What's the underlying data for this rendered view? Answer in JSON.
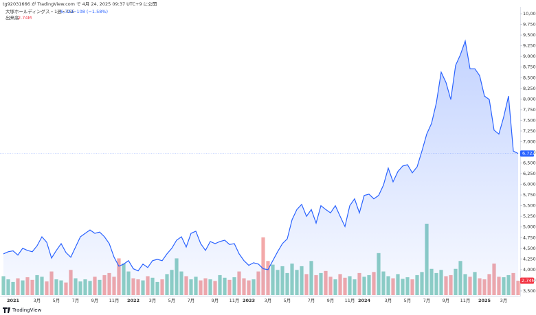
{
  "chart_data": {
    "type": "line",
    "header": "tg92031666 が TradingView.com で 4月 24, 2025 09:37 UTC+9 に公開",
    "title": "大塚ホールディングス・1週・TSE",
    "last": {
      "value": 6722,
      "label": "6,722"
    },
    "change": "−108 (−1.58%)",
    "footer": "TradingView",
    "categories": [
      null,
      null,
      "2021",
      null,
      null,
      null,
      null,
      "3月",
      null,
      null,
      null,
      "5月",
      null,
      null,
      null,
      "7月",
      null,
      null,
      null,
      "9月",
      null,
      null,
      null,
      "11月",
      null,
      null,
      null,
      "2022",
      null,
      null,
      null,
      "3月",
      null,
      null,
      null,
      "5月",
      null,
      null,
      null,
      "7月",
      null,
      null,
      null,
      null,
      "9月",
      null,
      null,
      null,
      "11月",
      null,
      null,
      "2023",
      null,
      null,
      null,
      "3月",
      null,
      null,
      null,
      "5月",
      null,
      null,
      null,
      null,
      "7月",
      null,
      null,
      null,
      "9月",
      null,
      null,
      null,
      "11月",
      null,
      null,
      "2024",
      null,
      null,
      null,
      null,
      "3月",
      null,
      null,
      null,
      "5月",
      null,
      null,
      null,
      "7月",
      null,
      null,
      null,
      "9月",
      null,
      null,
      null,
      "11月",
      null,
      null,
      null,
      "2025",
      null,
      null,
      null,
      "3月",
      null,
      null,
      null
    ],
    "price": {
      "color": "#2962ff",
      "values": [
        4370,
        4420,
        4440,
        4340,
        4500,
        4450,
        4420,
        4560,
        4770,
        4640,
        4270,
        4450,
        4610,
        4400,
        4290,
        4530,
        4770,
        4850,
        4930,
        4850,
        4880,
        4770,
        4610,
        4290,
        4080,
        4130,
        4210,
        4020,
        3970,
        4130,
        4050,
        4210,
        4240,
        4210,
        4370,
        4500,
        4690,
        4770,
        4530,
        4850,
        4900,
        4610,
        4450,
        4660,
        4610,
        4660,
        4690,
        4590,
        4610,
        4370,
        4210,
        4100,
        4160,
        4130,
        4020,
        4000,
        4210,
        4420,
        4610,
        4720,
        5170,
        5410,
        5530,
        5250,
        5410,
        5090,
        5500,
        5410,
        5330,
        5500,
        5250,
        5010,
        5500,
        5660,
        5330,
        5740,
        5770,
        5660,
        5740,
        5980,
        6380,
        6060,
        6300,
        6430,
        6460,
        6270,
        6410,
        6780,
        7180,
        7430,
        7910,
        8630,
        8390,
        7990,
        8790,
        9040,
        9360,
        8710,
        8710,
        8550,
        8070,
        7990,
        7270,
        7180,
        7580,
        8070,
        6780,
        6722
      ]
    },
    "volume": {
      "name": "出来高",
      "up_color": "#8fd0c3",
      "down_color": "#f3a9a9",
      "last_label": "2.74M",
      "values": [
        3.6,
        3.0,
        2.5,
        3.2,
        2.8,
        3.4,
        2.9,
        3.8,
        3.5,
        2.6,
        4.5,
        3.0,
        2.8,
        2.4,
        4.8,
        3.2,
        2.6,
        3.0,
        2.7,
        3.5,
        2.9,
        3.8,
        4.2,
        3.5,
        7.0,
        6.0,
        4.5,
        3.2,
        3.0,
        2.8,
        3.6,
        3.3,
        2.5,
        3.0,
        4.0,
        4.8,
        7.0,
        4.5,
        3.6,
        3.0,
        3.5,
        2.8,
        3.2,
        3.0,
        2.7,
        3.8,
        3.3,
        2.9,
        3.4,
        4.5,
        3.2,
        2.8,
        3.0,
        4.5,
        11.0,
        6.5,
        5.8,
        4.8,
        5.5,
        4.2,
        6.0,
        4.8,
        5.5,
        4.0,
        6.5,
        3.8,
        4.2,
        4.6,
        3.5,
        3.0,
        4.0,
        3.3,
        3.6,
        3.0,
        4.2,
        3.5,
        3.8,
        4.4,
        8.0,
        4.5,
        3.6,
        3.2,
        4.0,
        3.1,
        3.4,
        3.0,
        3.8,
        4.4,
        13.6,
        5.0,
        4.2,
        4.8,
        3.6,
        3.8,
        5.0,
        6.5,
        4.0,
        3.5,
        4.4,
        3.2,
        3.0,
        4.0,
        6.0,
        3.5,
        3.4,
        3.8,
        4.2,
        2.74
      ]
    },
    "ylim": [
      3370,
      10130
    ],
    "yticks": [
      {
        "value": 3500,
        "label": "3,500"
      },
      {
        "value": 3750,
        "label": "3,750"
      },
      {
        "value": 4000,
        "label": "4,000"
      },
      {
        "value": 4250,
        "label": "4,250"
      },
      {
        "value": 4500,
        "label": "4,500"
      },
      {
        "value": 4750,
        "label": "4,750"
      },
      {
        "value": 5000,
        "label": "5,000"
      },
      {
        "value": 5250,
        "label": "5,250"
      },
      {
        "value": 5500,
        "label": "5,500"
      },
      {
        "value": 5750,
        "label": "5,750"
      },
      {
        "value": 6000,
        "label": "6,000"
      },
      {
        "value": 6250,
        "label": "6,250"
      },
      {
        "value": 6500,
        "label": "6,500"
      },
      {
        "value": 6750,
        "label": "6,750"
      },
      {
        "value": 7000,
        "label": "7,000"
      },
      {
        "value": 7250,
        "label": "7,250"
      },
      {
        "value": 7500,
        "label": "7,500"
      },
      {
        "value": 7750,
        "label": "7,750"
      },
      {
        "value": 8000,
        "label": "8,000"
      },
      {
        "value": 8250,
        "label": "8,250"
      },
      {
        "value": 8500,
        "label": "8,500"
      },
      {
        "value": 8750,
        "label": "8,750"
      },
      {
        "value": 9000,
        "label": "9,000"
      },
      {
        "value": 9250,
        "label": "9,250"
      },
      {
        "value": 9500,
        "label": "9,500"
      },
      {
        "value": 9750,
        "label": "9,750"
      },
      {
        "value": 10000,
        "label": "10,000"
      }
    ]
  }
}
